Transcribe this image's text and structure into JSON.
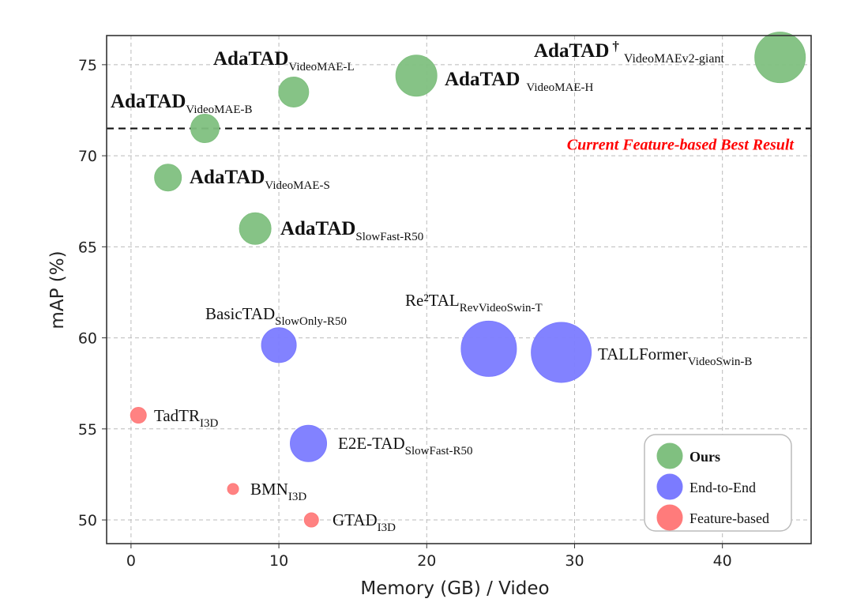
{
  "chart_data": {
    "type": "scatter",
    "subtype": "bubble",
    "xlabel": "Memory (GB) / Video",
    "ylabel": "mAP (%)",
    "xlim": [
      -1.65,
      46
    ],
    "ylim": [
      48.7,
      76.6
    ],
    "xticks": [
      0,
      10,
      20,
      30,
      40
    ],
    "yticks": [
      50,
      55,
      60,
      65,
      70,
      75
    ],
    "grid": true,
    "legend_position": "bottom-right",
    "groups": [
      {
        "name": "Ours",
        "color": "#80c080"
      },
      {
        "name": "End-to-End",
        "color": "#7b7bff"
      },
      {
        "name": "Feature-based",
        "color": "#ff7b7b"
      }
    ],
    "reference_line": {
      "y": 71.5,
      "label": "Current Feature-based Best Result",
      "color": "#ff0000"
    },
    "points": [
      {
        "name": "AdaTAD",
        "mark": "†",
        "sub": "VideoMAEv2-giant",
        "group": "Ours",
        "x": 43.9,
        "y": 75.4,
        "size": 32
      },
      {
        "name": "AdaTAD",
        "sub": "VideoMAE-H",
        "group": "Ours",
        "x": 19.3,
        "y": 74.4,
        "size": 26
      },
      {
        "name": "AdaTAD",
        "sub": "VideoMAE-L",
        "group": "Ours",
        "x": 11.0,
        "y": 73.5,
        "size": 19
      },
      {
        "name": "AdaTAD",
        "sub": "VideoMAE-B",
        "group": "Ours",
        "x": 5.0,
        "y": 71.5,
        "size": 18
      },
      {
        "name": "AdaTAD",
        "sub": "VideoMAE-S",
        "group": "Ours",
        "x": 2.5,
        "y": 68.8,
        "size": 17
      },
      {
        "name": "AdaTAD",
        "sub": "SlowFast-R50",
        "group": "Ours",
        "x": 8.4,
        "y": 66.0,
        "size": 20
      },
      {
        "name": "BasicTAD",
        "sub": "SlowOnly-R50",
        "group": "End-to-End",
        "x": 10.0,
        "y": 59.6,
        "size": 22
      },
      {
        "name": "Re²TAL",
        "sub": "RevVideoSwin-T",
        "group": "End-to-End",
        "x": 24.2,
        "y": 59.4,
        "size": 35
      },
      {
        "name": "TALLFormer",
        "sub": "VideoSwin-B",
        "group": "End-to-End",
        "x": 29.1,
        "y": 59.2,
        "size": 38
      },
      {
        "name": "E2E-TAD",
        "sub": "SlowFast-R50",
        "group": "End-to-End",
        "x": 12.0,
        "y": 54.2,
        "size": 23
      },
      {
        "name": "TadTR",
        "sub": "I3D",
        "group": "Feature-based",
        "x": 0.5,
        "y": 55.75,
        "size": 10
      },
      {
        "name": "BMN",
        "sub": "I3D",
        "group": "Feature-based",
        "x": 6.9,
        "y": 51.7,
        "size": 7
      },
      {
        "name": "GTAD",
        "sub": "I3D",
        "group": "Feature-based",
        "x": 12.2,
        "y": 50.0,
        "size": 9
      }
    ]
  }
}
